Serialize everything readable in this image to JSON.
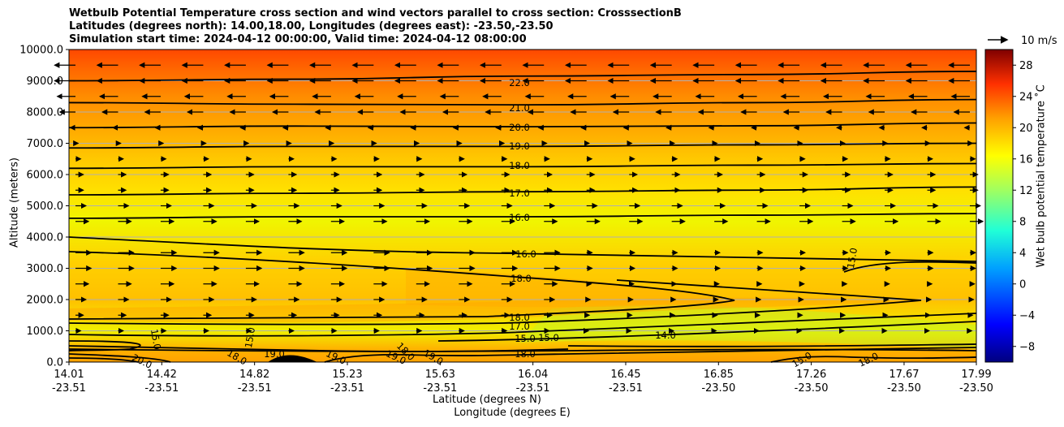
{
  "title_lines": [
    "Wetbulb Potential Temperature cross section and wind vectors parallel to cross section: CrosssectionB",
    "Latitudes (degrees north): 14.00,18.00, Longitudes (degrees east): -23.50,-23.50",
    "Simulation start time: 2024-04-12 00:00:00, Valid time: 2024-04-12 08:00:00"
  ],
  "chart_data": {
    "type": "heatmap",
    "title": "Wetbulb Potential Temperature cross section and wind vectors parallel to cross section: CrosssectionB",
    "ylabel": "Altitude (meters)",
    "xlabel": "Latitude (degrees N)",
    "xlabel2": "Longitude (degrees E)",
    "ylim": [
      0,
      10000
    ],
    "xlim": [
      14.01,
      17.99
    ],
    "yticks": [
      "0.0",
      "1000.0",
      "2000.0",
      "3000.0",
      "4000.0",
      "5000.0",
      "6000.0",
      "7000.0",
      "8000.0",
      "9000.0",
      "10000.0"
    ],
    "xticks": [
      {
        "lat": "14.01",
        "lon": "-23.51"
      },
      {
        "lat": "14.42",
        "lon": "-23.51"
      },
      {
        "lat": "14.82",
        "lon": "-23.51"
      },
      {
        "lat": "15.23",
        "lon": "-23.51"
      },
      {
        "lat": "15.63",
        "lon": "-23.51"
      },
      {
        "lat": "16.04",
        "lon": "-23.51"
      },
      {
        "lat": "16.45",
        "lon": "-23.51"
      },
      {
        "lat": "16.85",
        "lon": "-23.50"
      },
      {
        "lat": "17.26",
        "lon": "-23.50"
      },
      {
        "lat": "17.67",
        "lon": "-23.50"
      },
      {
        "lat": "17.99",
        "lon": "-23.50"
      }
    ],
    "colorbar": {
      "label": "Wet bulb potential temperature ˚C",
      "range": [
        -10,
        30
      ],
      "ticks": [
        "28",
        "24",
        "20",
        "16",
        "12",
        "8",
        "4",
        "0",
        "−4",
        "−8"
      ]
    },
    "quiver_key": {
      "label": "10 m/s"
    },
    "grid": "horizontal",
    "contour_labels": [
      "22.0",
      "21.0",
      "20.0",
      "19.0",
      "18.0",
      "17.0",
      "16.0",
      "16.0",
      "18.0",
      "18.0",
      "17.0",
      "15.0",
      "15.0",
      "14.0",
      "15.0",
      "15.0",
      "15.0",
      "18.0",
      "18.0",
      "19.0",
      "19.0",
      "19.0",
      "20.0",
      "19.0",
      "18.0",
      "15.0",
      "18.0"
    ],
    "contour_levels": [
      {
        "level": 22.0,
        "alt": [
          9000,
          9050,
          9150,
          9200,
          9300
        ]
      },
      {
        "level": 21.0,
        "alt": [
          8300,
          8250,
          8230,
          8300,
          8400
        ]
      },
      {
        "level": 20.0,
        "alt": [
          7500,
          7550,
          7530,
          7560,
          7650
        ]
      },
      {
        "level": 19.0,
        "alt": [
          6850,
          6900,
          6900,
          6950,
          7000
        ]
      },
      {
        "level": 18.0,
        "alt": [
          6200,
          6250,
          6250,
          6300,
          6350
        ]
      },
      {
        "level": 17.0,
        "alt": [
          5350,
          5400,
          5450,
          5500,
          5600
        ]
      },
      {
        "level": 16.0,
        "alt": [
          4600,
          4650,
          4650,
          4700,
          4750
        ]
      }
    ],
    "wind_u_ms": [
      -8,
      -8,
      -7,
      -6,
      -2,
      1,
      2,
      3,
      3,
      4,
      5,
      6,
      6,
      5,
      4,
      3,
      2
    ],
    "wind_levels_m": [
      9500,
      9000,
      8500,
      8000,
      7500,
      7000,
      6500,
      6000,
      5500,
      5000,
      4500,
      3500,
      3000,
      2500,
      2000,
      1500,
      1000
    ]
  }
}
